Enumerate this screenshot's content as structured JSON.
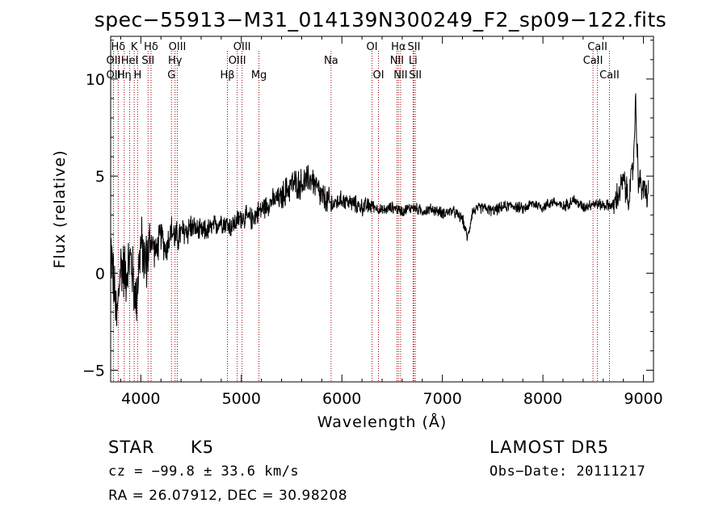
{
  "chart_data": {
    "type": "line",
    "title": "spec−55913−M31_014139N300249_F2_sp09−122.fits",
    "xlabel": "Wavelength (Å)",
    "ylabel": "Flux (relative)",
    "xlim": [
      3700,
      9100
    ],
    "ylim": [
      -5.6,
      12.2
    ],
    "xticks": [
      4000,
      5000,
      6000,
      7000,
      8000,
      9000
    ],
    "xtick_labels": [
      "4000",
      "5000",
      "6000",
      "7000",
      "8000",
      "9000"
    ],
    "yticks": [
      -5,
      0,
      5,
      10
    ],
    "ytick_labels": [
      "−5",
      "0",
      "5",
      "10"
    ],
    "grid": false,
    "line_color": "#000000",
    "marker_color": "#a0000a",
    "spectral_lines": [
      {
        "label": "Hδ",
        "x": 3775,
        "row": 1
      },
      {
        "label": "OII",
        "x": 3728,
        "row": 2
      },
      {
        "label": "OII",
        "x": 3728,
        "row": 3
      },
      {
        "label": "Hη",
        "x": 3835,
        "row": 3
      },
      {
        "label": "K",
        "x": 3934,
        "row": 1
      },
      {
        "label": "HeI",
        "x": 3889,
        "row": 2
      },
      {
        "label": "H",
        "x": 3968,
        "row": 3
      },
      {
        "label": "Hδ",
        "x": 4102,
        "row": 1
      },
      {
        "label": "SII",
        "x": 4072,
        "row": 2
      },
      {
        "label": "OIII",
        "x": 4363,
        "row": 1
      },
      {
        "label": "Hγ",
        "x": 4341,
        "row": 2
      },
      {
        "label": "G",
        "x": 4305,
        "row": 3
      },
      {
        "label": "OIII",
        "x": 5007,
        "row": 1
      },
      {
        "label": "OIII",
        "x": 4959,
        "row": 2
      },
      {
        "label": "Hβ",
        "x": 4861,
        "row": 3
      },
      {
        "label": "Mg",
        "x": 5175,
        "row": 3
      },
      {
        "label": "Na",
        "x": 5893,
        "row": 2
      },
      {
        "label": "OI",
        "x": 6300,
        "row": 1
      },
      {
        "label": "OI",
        "x": 6364,
        "row": 3
      },
      {
        "label": "Hα",
        "x": 6563,
        "row": 1
      },
      {
        "label": "SII",
        "x": 6717,
        "row": 1
      },
      {
        "label": "NII",
        "x": 6548,
        "row": 2
      },
      {
        "label": "Li",
        "x": 6708,
        "row": 2
      },
      {
        "label": "NII",
        "x": 6584,
        "row": 3
      },
      {
        "label": "SII",
        "x": 6731,
        "row": 3
      },
      {
        "label": "CaII",
        "x": 8542,
        "row": 1
      },
      {
        "label": "CaII",
        "x": 8498,
        "row": 2
      },
      {
        "label": "CaII",
        "x": 8662,
        "row": 3
      }
    ],
    "spectrum_anchors": {
      "x": [
        3700,
        3760,
        3800,
        3850,
        3900,
        3950,
        4000,
        4050,
        4100,
        4150,
        4200,
        4250,
        4300,
        4350,
        4400,
        4500,
        4600,
        4700,
        4800,
        4900,
        5000,
        5100,
        5200,
        5300,
        5400,
        5500,
        5600,
        5700,
        5800,
        5900,
        6000,
        6100,
        6200,
        6300,
        6400,
        6500,
        6600,
        6700,
        6800,
        6900,
        7000,
        7100,
        7200,
        7250,
        7300,
        7400,
        7500,
        7600,
        7700,
        7800,
        7900,
        8000,
        8100,
        8200,
        8300,
        8400,
        8500,
        8600,
        8700,
        8750,
        8800,
        8850,
        8900,
        8920,
        8950,
        9000,
        9050
      ],
      "y": [
        1.5,
        -2.5,
        0.5,
        0.0,
        0.8,
        -1.5,
        1.5,
        0.5,
        1.8,
        1.0,
        2.0,
        1.2,
        2.2,
        1.8,
        2.0,
        2.4,
        2.1,
        2.3,
        2.7,
        2.4,
        2.9,
        2.8,
        3.3,
        3.7,
        3.9,
        4.6,
        4.6,
        4.9,
        3.9,
        3.5,
        3.8,
        3.6,
        3.4,
        3.5,
        3.2,
        3.4,
        3.2,
        3.4,
        3.2,
        3.3,
        3.1,
        3.2,
        2.8,
        1.8,
        3.2,
        3.4,
        3.2,
        3.4,
        3.5,
        3.3,
        3.6,
        3.4,
        3.7,
        3.4,
        3.8,
        3.4,
        3.6,
        3.5,
        3.5,
        4.0,
        4.8,
        3.8,
        5.5,
        9.0,
        4.8,
        4.3,
        4.0
      ]
    }
  },
  "info": {
    "class_label": "STAR",
    "subclass": "K5",
    "survey": "LAMOST DR5",
    "cz": "cz = −99.8 ± 33.6 km/s",
    "obs_date": "Obs−Date: 20111217",
    "coords": "RA =  26.07912, DEC =  30.98208"
  }
}
